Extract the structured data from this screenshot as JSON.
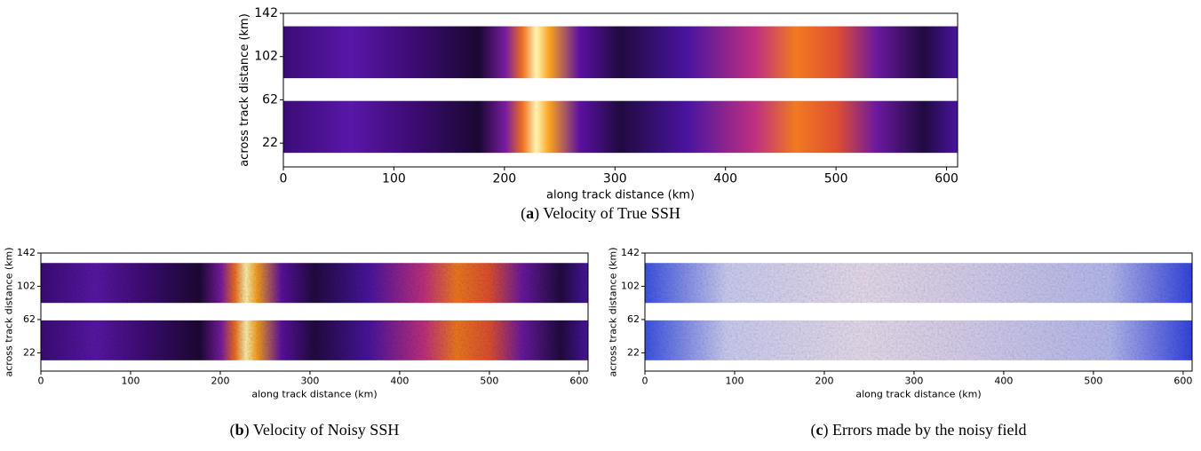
{
  "chart_data": [
    {
      "type": "heatmap",
      "caption": [
        "(",
        "a",
        ") Velocity of True SSH"
      ],
      "xlabel": "along track distance (km)",
      "ylabel": "across track distance (km)",
      "xlim": [
        0,
        610
      ],
      "ylim": [
        0,
        142
      ],
      "xticks": [
        0,
        100,
        200,
        300,
        400,
        500,
        600
      ],
      "yticks": [
        22,
        62,
        102,
        142
      ],
      "swaths": [
        [
          13,
          61
        ],
        [
          82,
          130
        ]
      ]
    },
    {
      "type": "heatmap",
      "caption": [
        "(",
        "b",
        ") Velocity of Noisy SSH"
      ],
      "xlabel": "along track distance (km)",
      "ylabel": "across track distance (km)",
      "xlim": [
        0,
        610
      ],
      "ylim": [
        0,
        142
      ],
      "xticks": [
        0,
        100,
        200,
        300,
        400,
        500,
        600
      ],
      "yticks": [
        22,
        62,
        102,
        142
      ],
      "swaths": [
        [
          13,
          61
        ],
        [
          82,
          130
        ]
      ]
    },
    {
      "type": "heatmap",
      "caption": [
        "(",
        "c",
        ") Errors made by the noisy field"
      ],
      "xlabel": "along track distance (km)",
      "ylabel": "across track distance (km)",
      "xlim": [
        0,
        610
      ],
      "ylim": [
        0,
        142
      ],
      "xticks": [
        0,
        100,
        200,
        300,
        400,
        500,
        600
      ],
      "yticks": [
        22,
        62,
        102,
        142
      ],
      "swaths": [
        [
          13,
          61
        ],
        [
          82,
          130
        ]
      ]
    }
  ]
}
